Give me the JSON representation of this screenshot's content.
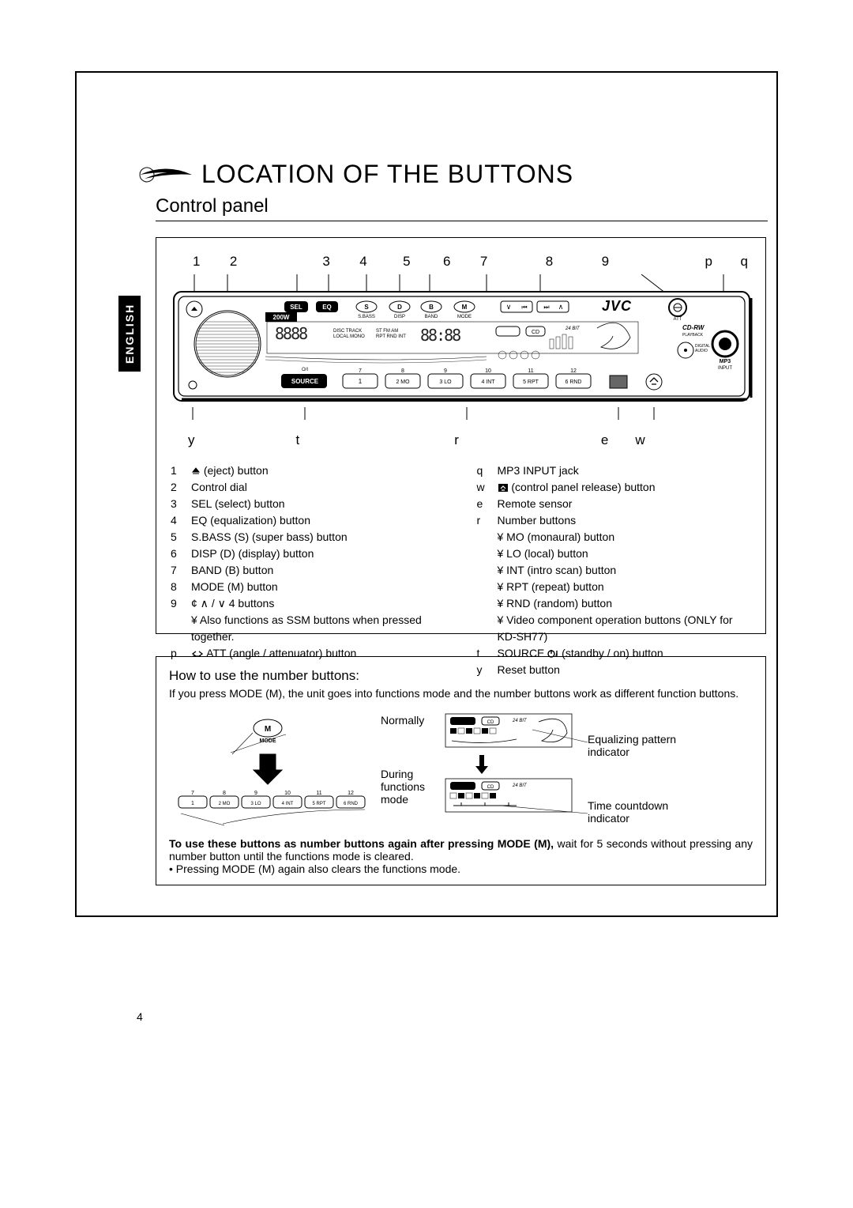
{
  "title": "LOCATION OF THE BUTTONS",
  "subtitle": "Control panel",
  "language_tab": "ENGLISH",
  "page_number": "4",
  "brand": "JVC",
  "radio_power_label": "200W",
  "callouts_top": [
    "1",
    "2",
    "3",
    "4",
    "5",
    "6",
    "7",
    "8",
    "9",
    "p",
    "q"
  ],
  "callouts_bottom": {
    "y": "y",
    "t": "t",
    "r": "r",
    "e": "e",
    "w": "w"
  },
  "legend_left": [
    {
      "n": "1",
      "t": "0  (eject) button",
      "icon": "eject"
    },
    {
      "n": "2",
      "t": "Control dial"
    },
    {
      "n": "3",
      "t": "SEL (select) button"
    },
    {
      "n": "4",
      "t": "EQ (equalization) button"
    },
    {
      "n": "5",
      "t": "S.BASS (S) (super bass) button"
    },
    {
      "n": "6",
      "t": "DISP (D) (display) button"
    },
    {
      "n": "7",
      "t": "BAND (B) button"
    },
    {
      "n": "8",
      "t": "MODE (M) button"
    },
    {
      "n": "9",
      "t": "¢     ∧ / ∨   4     buttons"
    },
    {
      "n": "",
      "t": "¥ Also functions as SSM buttons when pressed together.",
      "sub": true
    },
    {
      "n": "p",
      "t": "      ATT (angle / attenuator) button",
      "icon": "angle"
    }
  ],
  "legend_right": [
    {
      "n": "q",
      "t": "MP3 INPUT jack"
    },
    {
      "n": "w",
      "t": "      (control panel release) button",
      "icon": "release"
    },
    {
      "n": "e",
      "t": "Remote sensor"
    },
    {
      "n": "r",
      "t": "Number buttons"
    },
    {
      "n": "",
      "t": "¥ MO (monaural) button",
      "sub": true
    },
    {
      "n": "",
      "t": "¥ LO (local) button",
      "sub": true
    },
    {
      "n": "",
      "t": "¥ INT (intro scan) button",
      "sub": true
    },
    {
      "n": "",
      "t": "¥ RPT (repeat) button",
      "sub": true
    },
    {
      "n": "",
      "t": "¥ RND (random) button",
      "sub": true
    },
    {
      "n": "",
      "t": "¥ Video component operation buttons (ONLY for KD-SH77)",
      "sub": true
    },
    {
      "n": "t",
      "t": "SOURCE       (standby / on) button",
      "icon": "power"
    },
    {
      "n": "y",
      "t": "Reset button"
    }
  ],
  "howto": {
    "title": "How to use the number buttons:",
    "intro": "If you press MODE (M), the unit goes into functions mode and the number buttons work as different function buttons.",
    "normally": "Normally",
    "during": "During functions mode",
    "eq_label": "Equalizing pattern indicator",
    "time_label": "Time countdown indicator",
    "bold_note": "To use these buttons as number buttons again after pressing MODE (M),",
    "note_tail": " wait for 5 seconds without pressing any number button until the functions mode is cleared.",
    "bullet": "• Pressing MODE (M) again also clears the functions mode."
  },
  "panel_buttons": {
    "sel": "SEL",
    "eq": "EQ",
    "s": "S",
    "d": "D",
    "b": "B",
    "m": "M",
    "source": "SOURCE",
    "sbass": "S.BASS",
    "disp": "DISP",
    "band": "BAND",
    "mode": "MODE",
    "att": "ATT",
    "cdrw": "CD-RW",
    "playback": "PLAYBACK",
    "mp3": "MP3",
    "input": "INPUT",
    "num_labels": [
      "1",
      "2  MO",
      "3  LO",
      "4  INT",
      "5  RPT",
      "6  RND"
    ],
    "num_top": [
      "7",
      "8",
      "9",
      "10",
      "11",
      "12"
    ]
  },
  "colors": {
    "black": "#000000",
    "white": "#ffffff"
  }
}
